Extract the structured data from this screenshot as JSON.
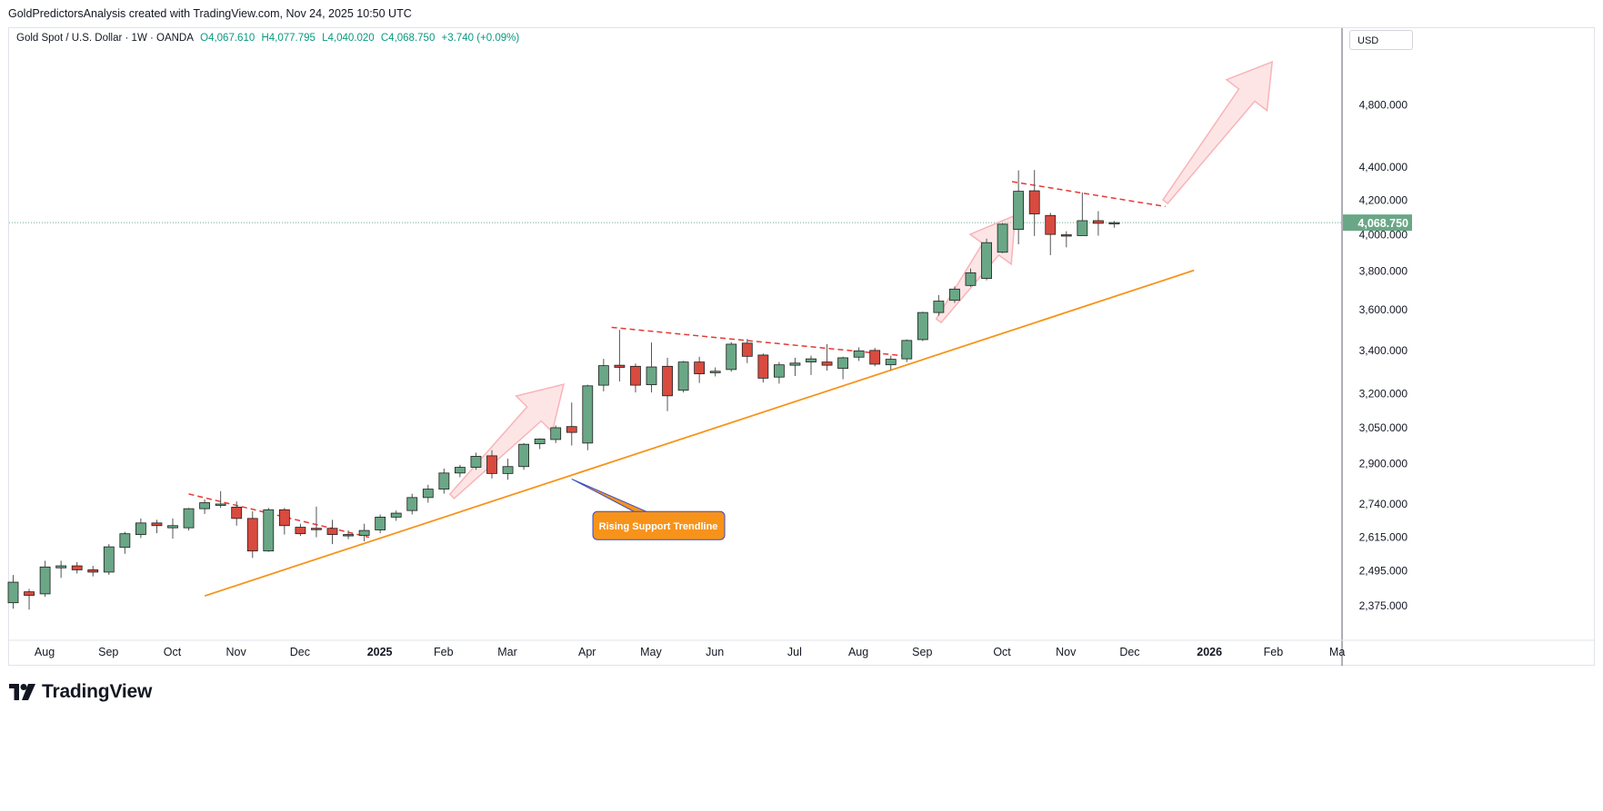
{
  "header": {
    "credit": "GoldPredictorsAnalysis created with TradingView.com, Nov 24, 2025 10:50 UTC"
  },
  "legend": {
    "symbol": "Gold Spot / U.S. Dollar · 1W · OANDA",
    "open": "O4,067.610",
    "high": "H4,077.795",
    "low": "L4,040.020",
    "close": "C4,068.750",
    "change": "+3.740 (+0.09%)"
  },
  "currency": "USD",
  "footer": {
    "brand": "TradingView"
  },
  "colors": {
    "up": "#6aa786",
    "down": "#d94a3f",
    "wick": "#555555",
    "support": "#f7931a",
    "resistance": "#e53935",
    "arrow": "#f8b4b8",
    "price_tag": "#6aa786"
  },
  "chart_data": {
    "type": "candlestick",
    "title": "Gold Spot / U.S. Dollar · 1W · OANDA",
    "scale": "log",
    "ylim": [
      2290,
      5200
    ],
    "y_ticks": [
      {
        "value": 2375,
        "label": "2,375.000"
      },
      {
        "value": 2495,
        "label": "2,495.000"
      },
      {
        "value": 2615,
        "label": "2,615.000"
      },
      {
        "value": 2740,
        "label": "2,740.000"
      },
      {
        "value": 2900,
        "label": "2,900.000"
      },
      {
        "value": 3050,
        "label": "3,050.000"
      },
      {
        "value": 3200,
        "label": "3,200.000"
      },
      {
        "value": 3400,
        "label": "3,400.000"
      },
      {
        "value": 3600,
        "label": "3,600.000"
      },
      {
        "value": 3800,
        "label": "3,800.000"
      },
      {
        "value": 4000,
        "label": "4,000.000"
      },
      {
        "value": 4200,
        "label": "4,200.000"
      },
      {
        "value": 4400,
        "label": "4,400.000"
      },
      {
        "value": 4800,
        "label": "4,800.000"
      }
    ],
    "x_ticks": [
      {
        "label": "Aug",
        "bar": 1,
        "bold": false
      },
      {
        "label": "Sep",
        "bar": 5,
        "bold": false
      },
      {
        "label": "Oct",
        "bar": 9,
        "bold": false
      },
      {
        "label": "Nov",
        "bar": 13,
        "bold": false
      },
      {
        "label": "Dec",
        "bar": 17,
        "bold": false
      },
      {
        "label": "2025",
        "bar": 22,
        "bold": true
      },
      {
        "label": "Feb",
        "bar": 26,
        "bold": false
      },
      {
        "label": "Mar",
        "bar": 30,
        "bold": false
      },
      {
        "label": "Apr",
        "bar": 35,
        "bold": false
      },
      {
        "label": "May",
        "bar": 39,
        "bold": false
      },
      {
        "label": "Jun",
        "bar": 43,
        "bold": false
      },
      {
        "label": "Jul",
        "bar": 48,
        "bold": false
      },
      {
        "label": "Aug",
        "bar": 52,
        "bold": false
      },
      {
        "label": "Sep",
        "bar": 56,
        "bold": false
      },
      {
        "label": "Oct",
        "bar": 61,
        "bold": false
      },
      {
        "label": "Nov",
        "bar": 65,
        "bold": false
      },
      {
        "label": "Dec",
        "bar": 69,
        "bold": false
      },
      {
        "label": "2026",
        "bar": 74,
        "bold": true
      },
      {
        "label": "Feb",
        "bar": 78,
        "bold": false
      },
      {
        "label": "Ma",
        "bar": 82,
        "bold": false
      }
    ],
    "last_price": {
      "value": 4068.75,
      "label": "4,068.750"
    },
    "candles": [
      {
        "o": 2385,
        "h": 2480,
        "l": 2365,
        "c": 2455
      },
      {
        "o": 2422,
        "h": 2432,
        "l": 2362,
        "c": 2410
      },
      {
        "o": 2415,
        "h": 2530,
        "l": 2405,
        "c": 2508
      },
      {
        "o": 2505,
        "h": 2530,
        "l": 2470,
        "c": 2512
      },
      {
        "o": 2512,
        "h": 2525,
        "l": 2485,
        "c": 2498
      },
      {
        "o": 2498,
        "h": 2512,
        "l": 2475,
        "c": 2490
      },
      {
        "o": 2490,
        "h": 2590,
        "l": 2480,
        "c": 2580
      },
      {
        "o": 2578,
        "h": 2635,
        "l": 2555,
        "c": 2628
      },
      {
        "o": 2625,
        "h": 2685,
        "l": 2612,
        "c": 2668
      },
      {
        "o": 2668,
        "h": 2680,
        "l": 2630,
        "c": 2658
      },
      {
        "o": 2650,
        "h": 2685,
        "l": 2610,
        "c": 2658
      },
      {
        "o": 2650,
        "h": 2725,
        "l": 2640,
        "c": 2722
      },
      {
        "o": 2722,
        "h": 2758,
        "l": 2702,
        "c": 2745
      },
      {
        "o": 2738,
        "h": 2790,
        "l": 2725,
        "c": 2740
      },
      {
        "o": 2728,
        "h": 2750,
        "l": 2658,
        "c": 2685
      },
      {
        "o": 2685,
        "h": 2712,
        "l": 2540,
        "c": 2565
      },
      {
        "o": 2565,
        "h": 2725,
        "l": 2562,
        "c": 2718
      },
      {
        "o": 2718,
        "h": 2725,
        "l": 2625,
        "c": 2658
      },
      {
        "o": 2652,
        "h": 2665,
        "l": 2620,
        "c": 2628
      },
      {
        "o": 2648,
        "h": 2730,
        "l": 2615,
        "c": 2645
      },
      {
        "o": 2648,
        "h": 2680,
        "l": 2590,
        "c": 2625
      },
      {
        "o": 2625,
        "h": 2640,
        "l": 2608,
        "c": 2622
      },
      {
        "o": 2622,
        "h": 2665,
        "l": 2600,
        "c": 2640
      },
      {
        "o": 2642,
        "h": 2700,
        "l": 2630,
        "c": 2690
      },
      {
        "o": 2690,
        "h": 2715,
        "l": 2676,
        "c": 2705
      },
      {
        "o": 2715,
        "h": 2780,
        "l": 2700,
        "c": 2765
      },
      {
        "o": 2765,
        "h": 2815,
        "l": 2745,
        "c": 2798
      },
      {
        "o": 2798,
        "h": 2880,
        "l": 2780,
        "c": 2862
      },
      {
        "o": 2862,
        "h": 2895,
        "l": 2845,
        "c": 2885
      },
      {
        "o": 2885,
        "h": 2945,
        "l": 2875,
        "c": 2930
      },
      {
        "o": 2932,
        "h": 2955,
        "l": 2840,
        "c": 2860
      },
      {
        "o": 2860,
        "h": 2920,
        "l": 2835,
        "c": 2888
      },
      {
        "o": 2888,
        "h": 2985,
        "l": 2875,
        "c": 2980
      },
      {
        "o": 2982,
        "h": 3005,
        "l": 2960,
        "c": 3002
      },
      {
        "o": 3000,
        "h": 3060,
        "l": 2985,
        "c": 3050
      },
      {
        "o": 3055,
        "h": 3160,
        "l": 2975,
        "c": 3030
      },
      {
        "o": 2985,
        "h": 3240,
        "l": 2955,
        "c": 3235
      },
      {
        "o": 3238,
        "h": 3360,
        "l": 3210,
        "c": 3328
      },
      {
        "o": 3330,
        "h": 3500,
        "l": 3255,
        "c": 3320
      },
      {
        "o": 3325,
        "h": 3338,
        "l": 3205,
        "c": 3238
      },
      {
        "o": 3240,
        "h": 3438,
        "l": 3205,
        "c": 3322
      },
      {
        "o": 3325,
        "h": 3365,
        "l": 3122,
        "c": 3190
      },
      {
        "o": 3215,
        "h": 3350,
        "l": 3205,
        "c": 3345
      },
      {
        "o": 3345,
        "h": 3370,
        "l": 3248,
        "c": 3290
      },
      {
        "o": 3295,
        "h": 3320,
        "l": 3278,
        "c": 3302
      },
      {
        "o": 3310,
        "h": 3440,
        "l": 3300,
        "c": 3430
      },
      {
        "o": 3435,
        "h": 3455,
        "l": 3340,
        "c": 3372
      },
      {
        "o": 3378,
        "h": 3385,
        "l": 3250,
        "c": 3270
      },
      {
        "o": 3275,
        "h": 3345,
        "l": 3245,
        "c": 3332
      },
      {
        "o": 3330,
        "h": 3365,
        "l": 3280,
        "c": 3340
      },
      {
        "o": 3345,
        "h": 3375,
        "l": 3285,
        "c": 3360
      },
      {
        "o": 3345,
        "h": 3430,
        "l": 3305,
        "c": 3330
      },
      {
        "o": 3315,
        "h": 3370,
        "l": 3265,
        "c": 3365
      },
      {
        "o": 3368,
        "h": 3415,
        "l": 3350,
        "c": 3398
      },
      {
        "o": 3400,
        "h": 3412,
        "l": 3325,
        "c": 3335
      },
      {
        "o": 3332,
        "h": 3375,
        "l": 3308,
        "c": 3358
      },
      {
        "o": 3360,
        "h": 3453,
        "l": 3345,
        "c": 3448
      },
      {
        "o": 3452,
        "h": 3590,
        "l": 3445,
        "c": 3586
      },
      {
        "o": 3586,
        "h": 3675,
        "l": 3570,
        "c": 3644
      },
      {
        "o": 3648,
        "h": 3720,
        "l": 3635,
        "c": 3706
      },
      {
        "o": 3725,
        "h": 3815,
        "l": 3718,
        "c": 3792
      },
      {
        "o": 3762,
        "h": 3978,
        "l": 3752,
        "c": 3956
      },
      {
        "o": 3903,
        "h": 4065,
        "l": 3898,
        "c": 4060
      },
      {
        "o": 4030,
        "h": 4379,
        "l": 3947,
        "c": 4252
      },
      {
        "o": 4255,
        "h": 4381,
        "l": 3993,
        "c": 4119
      },
      {
        "o": 4110,
        "h": 4125,
        "l": 3887,
        "c": 4002
      },
      {
        "o": 4000,
        "h": 4020,
        "l": 3930,
        "c": 3996
      },
      {
        "o": 3995,
        "h": 4245,
        "l": 3995,
        "c": 4080
      },
      {
        "o": 4080,
        "h": 4135,
        "l": 3995,
        "c": 4065
      },
      {
        "o": 4065,
        "h": 4078,
        "l": 4040,
        "c": 4069
      }
    ],
    "annotations": {
      "support_line": {
        "from": {
          "bar": 12,
          "price": 2408
        },
        "to": {
          "bar": 74,
          "price": 3805
        },
        "label": "Rising Support Trendline",
        "callout_from": {
          "bar": 35,
          "price": 2838
        },
        "callout_at": {
          "bar": 40.6,
          "price": 2660
        }
      },
      "resistance_lines": [
        {
          "from": {
            "bar": 11,
            "price": 2779
          },
          "to": {
            "bar": 22.3,
            "price": 2615
          }
        },
        {
          "from": {
            "bar": 37.5,
            "price": 3512
          },
          "to": {
            "bar": 56,
            "price": 3373
          }
        },
        {
          "from": {
            "bar": 62.6,
            "price": 4310
          },
          "to": {
            "bar": 72.2,
            "price": 4162
          }
        }
      ],
      "arrows": [
        {
          "from": {
            "bar": 27.5,
            "price": 2770
          },
          "to": {
            "bar": 34.5,
            "price": 3242
          }
        },
        {
          "from": {
            "bar": 58,
            "price": 3545
          },
          "to": {
            "bar": 62.8,
            "price": 4110
          }
        },
        {
          "from": {
            "bar": 72.2,
            "price": 4190
          },
          "to": {
            "bar": 78.9,
            "price": 5100
          }
        }
      ]
    }
  }
}
